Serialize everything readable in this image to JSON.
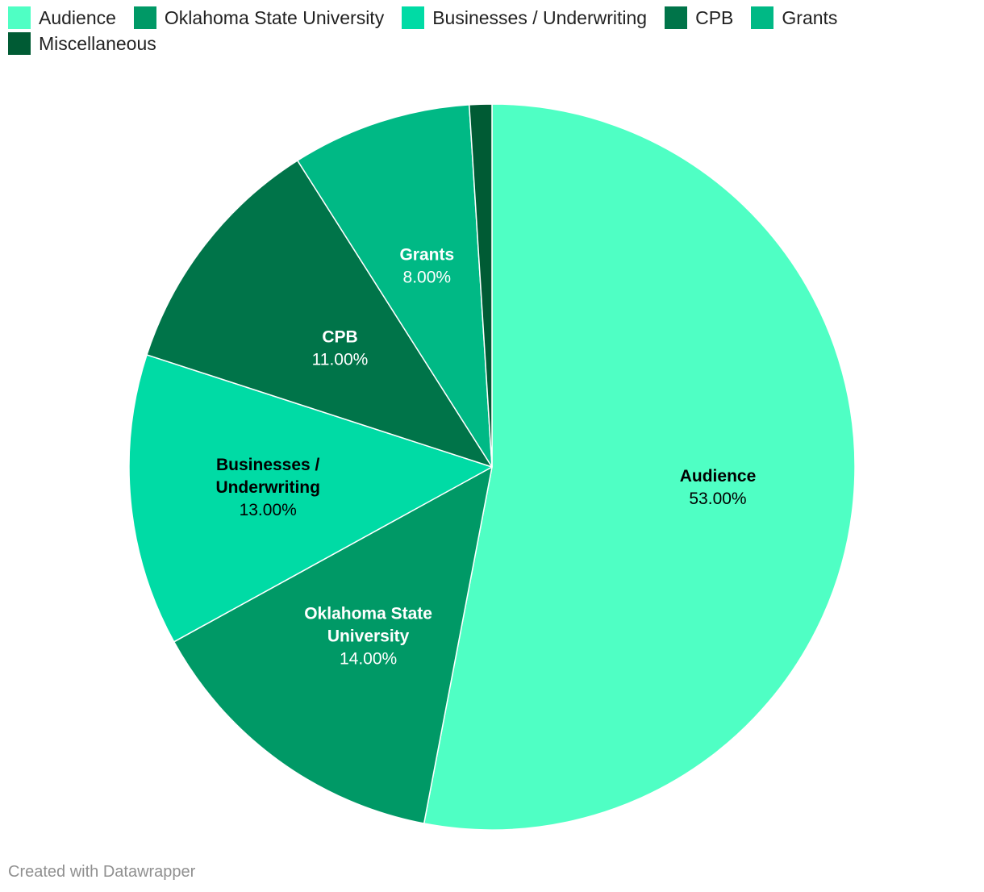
{
  "chart_data": {
    "type": "pie",
    "categories": [
      "Audience",
      "Oklahoma State University",
      "Businesses / Underwriting",
      "CPB",
      "Grants",
      "Miscellaneous"
    ],
    "values": [
      53,
      14,
      13,
      11,
      8,
      1
    ],
    "value_labels": [
      "53.00%",
      "14.00%",
      "13.00%",
      "11.00%",
      "8.00%",
      ""
    ],
    "slice_labels": [
      [
        "Audience"
      ],
      [
        "Oklahoma State",
        "University"
      ],
      [
        "Businesses /",
        "Underwriting"
      ],
      [
        "CPB"
      ],
      [
        "Grants"
      ],
      []
    ],
    "colors": [
      "#4fffc4",
      "#009966",
      "#00dba5",
      "#007449",
      "#00b985",
      "#005b34"
    ],
    "label_colors": [
      "#000000",
      "#ffffff",
      "#000000",
      "#ffffff",
      "#ffffff",
      "#ffffff"
    ],
    "legend_placement": "top-left",
    "start_angle": "12 o'clock",
    "direction": "clockwise"
  },
  "footer": {
    "credit": "Created with Datawrapper"
  }
}
